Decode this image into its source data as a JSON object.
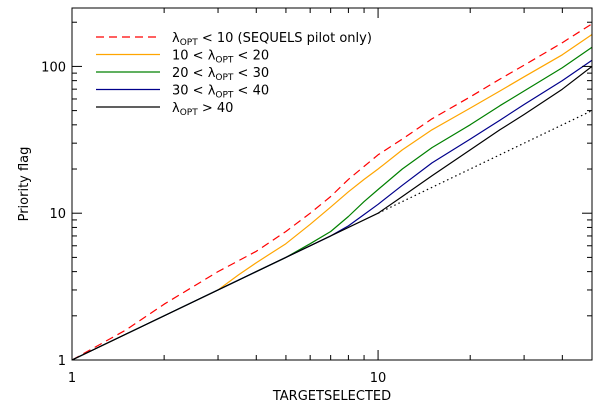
{
  "chart_data": {
    "type": "line",
    "xlabel": "TARGETSELECTED",
    "ylabel": "Priority flag",
    "xscale": "log",
    "yscale": "log",
    "xlim": [
      1,
      50
    ],
    "ylim": [
      1,
      250
    ],
    "xticks": [
      1,
      10
    ],
    "xtick_labels": [
      "1",
      "10"
    ],
    "yticks": [
      1,
      10,
      100
    ],
    "ytick_labels": [
      "1",
      "10",
      "100"
    ],
    "grid": false,
    "legend_position": "top-left",
    "series": [
      {
        "name": "λOPT < 10 (SEQUELS pilot only)",
        "legend": {
          "symbol": "λ",
          "sub": "OPT",
          "text": " < 10 (SEQUELS pilot only)",
          "prefix": ""
        },
        "color": "#ff0000",
        "dash": "dashed",
        "x": [
          1,
          1.5,
          2,
          3,
          4,
          5,
          6,
          7,
          8,
          10,
          12,
          15,
          20,
          25,
          30,
          40,
          50
        ],
        "y": [
          1,
          1.6,
          2.4,
          4,
          5.5,
          7.5,
          10,
          13,
          17,
          25,
          32,
          44,
          62,
          82,
          102,
          145,
          195
        ]
      },
      {
        "name": "10 < λOPT < 20",
        "legend": {
          "prefix": "10 < ",
          "symbol": "λ",
          "sub": "OPT",
          "text": " < 20"
        },
        "color": "#ffa500",
        "dash": "solid",
        "x": [
          1,
          3,
          3.5,
          4,
          5,
          6,
          7,
          8,
          9,
          10,
          12,
          15,
          20,
          25,
          30,
          40,
          50
        ],
        "y": [
          1,
          3,
          3.8,
          4.6,
          6.2,
          8.4,
          11,
          14,
          17,
          20,
          27,
          37,
          52,
          68,
          85,
          120,
          165
        ]
      },
      {
        "name": "20 < λOPT < 30",
        "legend": {
          "prefix": "20 < ",
          "symbol": "λ",
          "sub": "OPT",
          "text": " < 30"
        },
        "color": "#008000",
        "dash": "solid",
        "x": [
          1,
          5,
          6,
          7,
          8,
          9,
          10,
          12,
          15,
          20,
          25,
          30,
          40,
          50
        ],
        "y": [
          1,
          5,
          6.2,
          7.5,
          9.5,
          12,
          14.5,
          20,
          28,
          40,
          54,
          68,
          98,
          135
        ]
      },
      {
        "name": "30 < λOPT < 40",
        "legend": {
          "prefix": "30 < ",
          "symbol": "λ",
          "sub": "OPT",
          "text": " < 40"
        },
        "color": "#00008b",
        "dash": "solid",
        "x": [
          1,
          7,
          8,
          9,
          10,
          12,
          15,
          20,
          25,
          30,
          40,
          50
        ],
        "y": [
          1,
          7,
          8.2,
          9.8,
          11.5,
          15.5,
          22,
          32,
          43,
          55,
          80,
          110
        ]
      },
      {
        "name": "λOPT > 40",
        "legend": {
          "prefix": "",
          "symbol": "λ",
          "sub": "OPT",
          "text": " > 40"
        },
        "color": "#000000",
        "dash": "solid",
        "x": [
          1,
          10,
          12,
          15,
          20,
          25,
          30,
          40,
          50
        ],
        "y": [
          1,
          10,
          13,
          18,
          27,
          37,
          47,
          70,
          100
        ]
      }
    ],
    "reference_line": {
      "color": "#000000",
      "dash": "dotted",
      "x": [
        10,
        50
      ],
      "y": [
        10,
        50
      ]
    }
  }
}
